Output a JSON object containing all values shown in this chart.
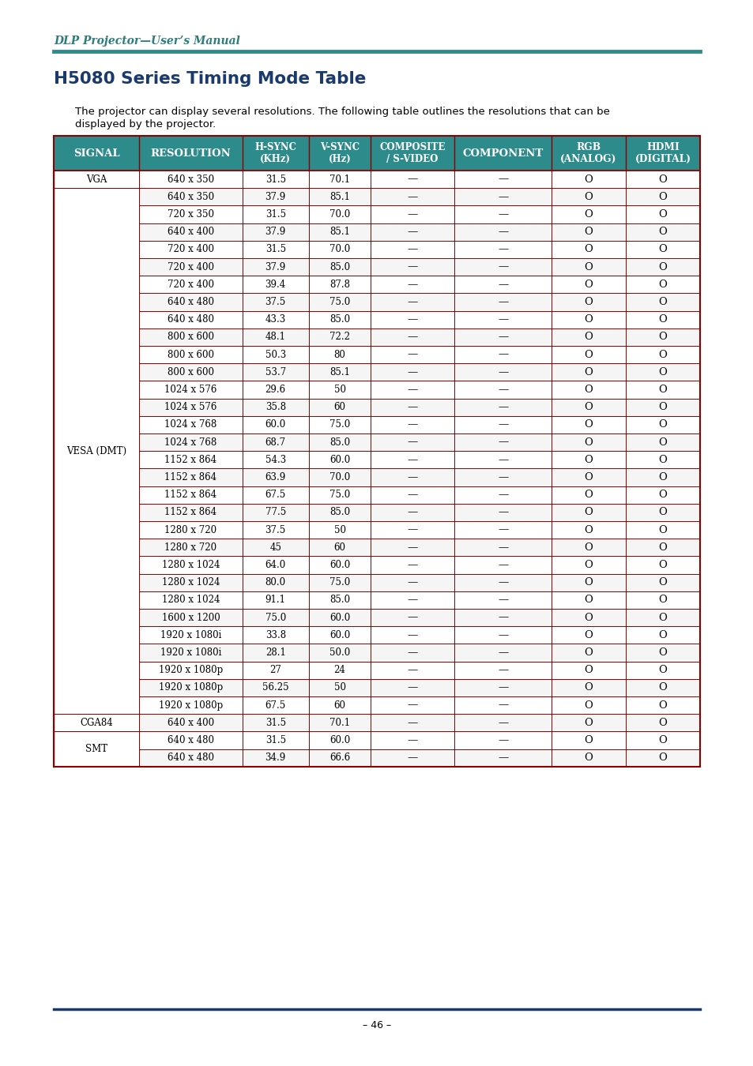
{
  "title": "H5080 Series Timing Mode Table",
  "header_text": "DLP Projector—User’s Manual",
  "description": "The projector can display several resolutions. The following table outlines the resolutions that can be\ndisplayed by the projector.",
  "col_header_display": [
    [
      "SIGNAL"
    ],
    [
      "RESOLUTION"
    ],
    [
      "H-SYNC",
      "(KHz)"
    ],
    [
      "V-SYNC",
      "(Hz)"
    ],
    [
      "COMPOSITE",
      "/ S-VIDEO"
    ],
    [
      "COMPONENT"
    ],
    [
      "RGB",
      "(ANALOG)"
    ],
    [
      "HDMI",
      "(DIGITAL)"
    ]
  ],
  "header_bg": "#2e8b8b",
  "border_color": "#8b0000",
  "rows": [
    [
      "VGA",
      "640 x 350",
      "31.5",
      "70.1",
      "—",
      "—",
      "O",
      "O"
    ],
    [
      "",
      "640 x 350",
      "37.9",
      "85.1",
      "—",
      "—",
      "O",
      "O"
    ],
    [
      "",
      "720 x 350",
      "31.5",
      "70.0",
      "—",
      "—",
      "O",
      "O"
    ],
    [
      "",
      "640 x 400",
      "37.9",
      "85.1",
      "—",
      "—",
      "O",
      "O"
    ],
    [
      "",
      "720 x 400",
      "31.5",
      "70.0",
      "—",
      "—",
      "O",
      "O"
    ],
    [
      "",
      "720 x 400",
      "37.9",
      "85.0",
      "—",
      "—",
      "O",
      "O"
    ],
    [
      "",
      "720 x 400",
      "39.4",
      "87.8",
      "—",
      "—",
      "O",
      "O"
    ],
    [
      "",
      "640 x 480",
      "37.5",
      "75.0",
      "—",
      "—",
      "O",
      "O"
    ],
    [
      "",
      "640 x 480",
      "43.3",
      "85.0",
      "—",
      "—",
      "O",
      "O"
    ],
    [
      "",
      "800 x 600",
      "48.1",
      "72.2",
      "—",
      "—",
      "O",
      "O"
    ],
    [
      "",
      "800 x 600",
      "50.3",
      "80",
      "—",
      "—",
      "O",
      "O"
    ],
    [
      "",
      "800 x 600",
      "53.7",
      "85.1",
      "—",
      "—",
      "O",
      "O"
    ],
    [
      "",
      "1024 x 576",
      "29.6",
      "50",
      "—",
      "—",
      "O",
      "O"
    ],
    [
      "",
      "1024 x 576",
      "35.8",
      "60",
      "—",
      "—",
      "O",
      "O"
    ],
    [
      "",
      "1024 x 768",
      "60.0",
      "75.0",
      "—",
      "—",
      "O",
      "O"
    ],
    [
      "VESA (DMT)",
      "1024 x 768",
      "68.7",
      "85.0",
      "—",
      "—",
      "O",
      "O"
    ],
    [
      "",
      "1152 x 864",
      "54.3",
      "60.0",
      "—",
      "—",
      "O",
      "O"
    ],
    [
      "",
      "1152 x 864",
      "63.9",
      "70.0",
      "—",
      "—",
      "O",
      "O"
    ],
    [
      "",
      "1152 x 864",
      "67.5",
      "75.0",
      "—",
      "—",
      "O",
      "O"
    ],
    [
      "",
      "1152 x 864",
      "77.5",
      "85.0",
      "—",
      "—",
      "O",
      "O"
    ],
    [
      "",
      "1280 x 720",
      "37.5",
      "50",
      "—",
      "—",
      "O",
      "O"
    ],
    [
      "",
      "1280 x 720",
      "45",
      "60",
      "—",
      "—",
      "O",
      "O"
    ],
    [
      "",
      "1280 x 1024",
      "64.0",
      "60.0",
      "—",
      "—",
      "O",
      "O"
    ],
    [
      "",
      "1280 x 1024",
      "80.0",
      "75.0",
      "—",
      "—",
      "O",
      "O"
    ],
    [
      "",
      "1280 x 1024",
      "91.1",
      "85.0",
      "—",
      "—",
      "O",
      "O"
    ],
    [
      "",
      "1600 x 1200",
      "75.0",
      "60.0",
      "—",
      "—",
      "O",
      "O"
    ],
    [
      "",
      "1920 x 1080i",
      "33.8",
      "60.0",
      "—",
      "—",
      "O",
      "O"
    ],
    [
      "",
      "1920 x 1080i",
      "28.1",
      "50.0",
      "—",
      "—",
      "O",
      "O"
    ],
    [
      "",
      "1920 x 1080p",
      "27",
      "24",
      "—",
      "—",
      "O",
      "O"
    ],
    [
      "",
      "1920 x 1080p",
      "56.25",
      "50",
      "—",
      "—",
      "O",
      "O"
    ],
    [
      "",
      "1920 x 1080p",
      "67.5",
      "60",
      "—",
      "—",
      "O",
      "O"
    ],
    [
      "CGA84",
      "640 x 400",
      "31.5",
      "70.1",
      "—",
      "—",
      "O",
      "O"
    ],
    [
      "SMT",
      "640 x 480",
      "31.5",
      "60.0",
      "—",
      "—",
      "O",
      "O"
    ],
    [
      "",
      "640 x 480",
      "34.9",
      "66.6",
      "—",
      "—",
      "O",
      "O"
    ]
  ],
  "signal_groups": [
    {
      "label": "VGA",
      "start": 0,
      "end": 0
    },
    {
      "label": "VESA (DMT)",
      "start": 1,
      "end": 30
    },
    {
      "label": "CGA84",
      "start": 31,
      "end": 31
    },
    {
      "label": "SMT",
      "start": 32,
      "end": 33
    }
  ],
  "page_num": "– 46 –",
  "teal_color": "#2e8b8b",
  "dark_red": "#8b0000",
  "title_color": "#1a3a6e",
  "header_italic_color": "#2e7d7d"
}
